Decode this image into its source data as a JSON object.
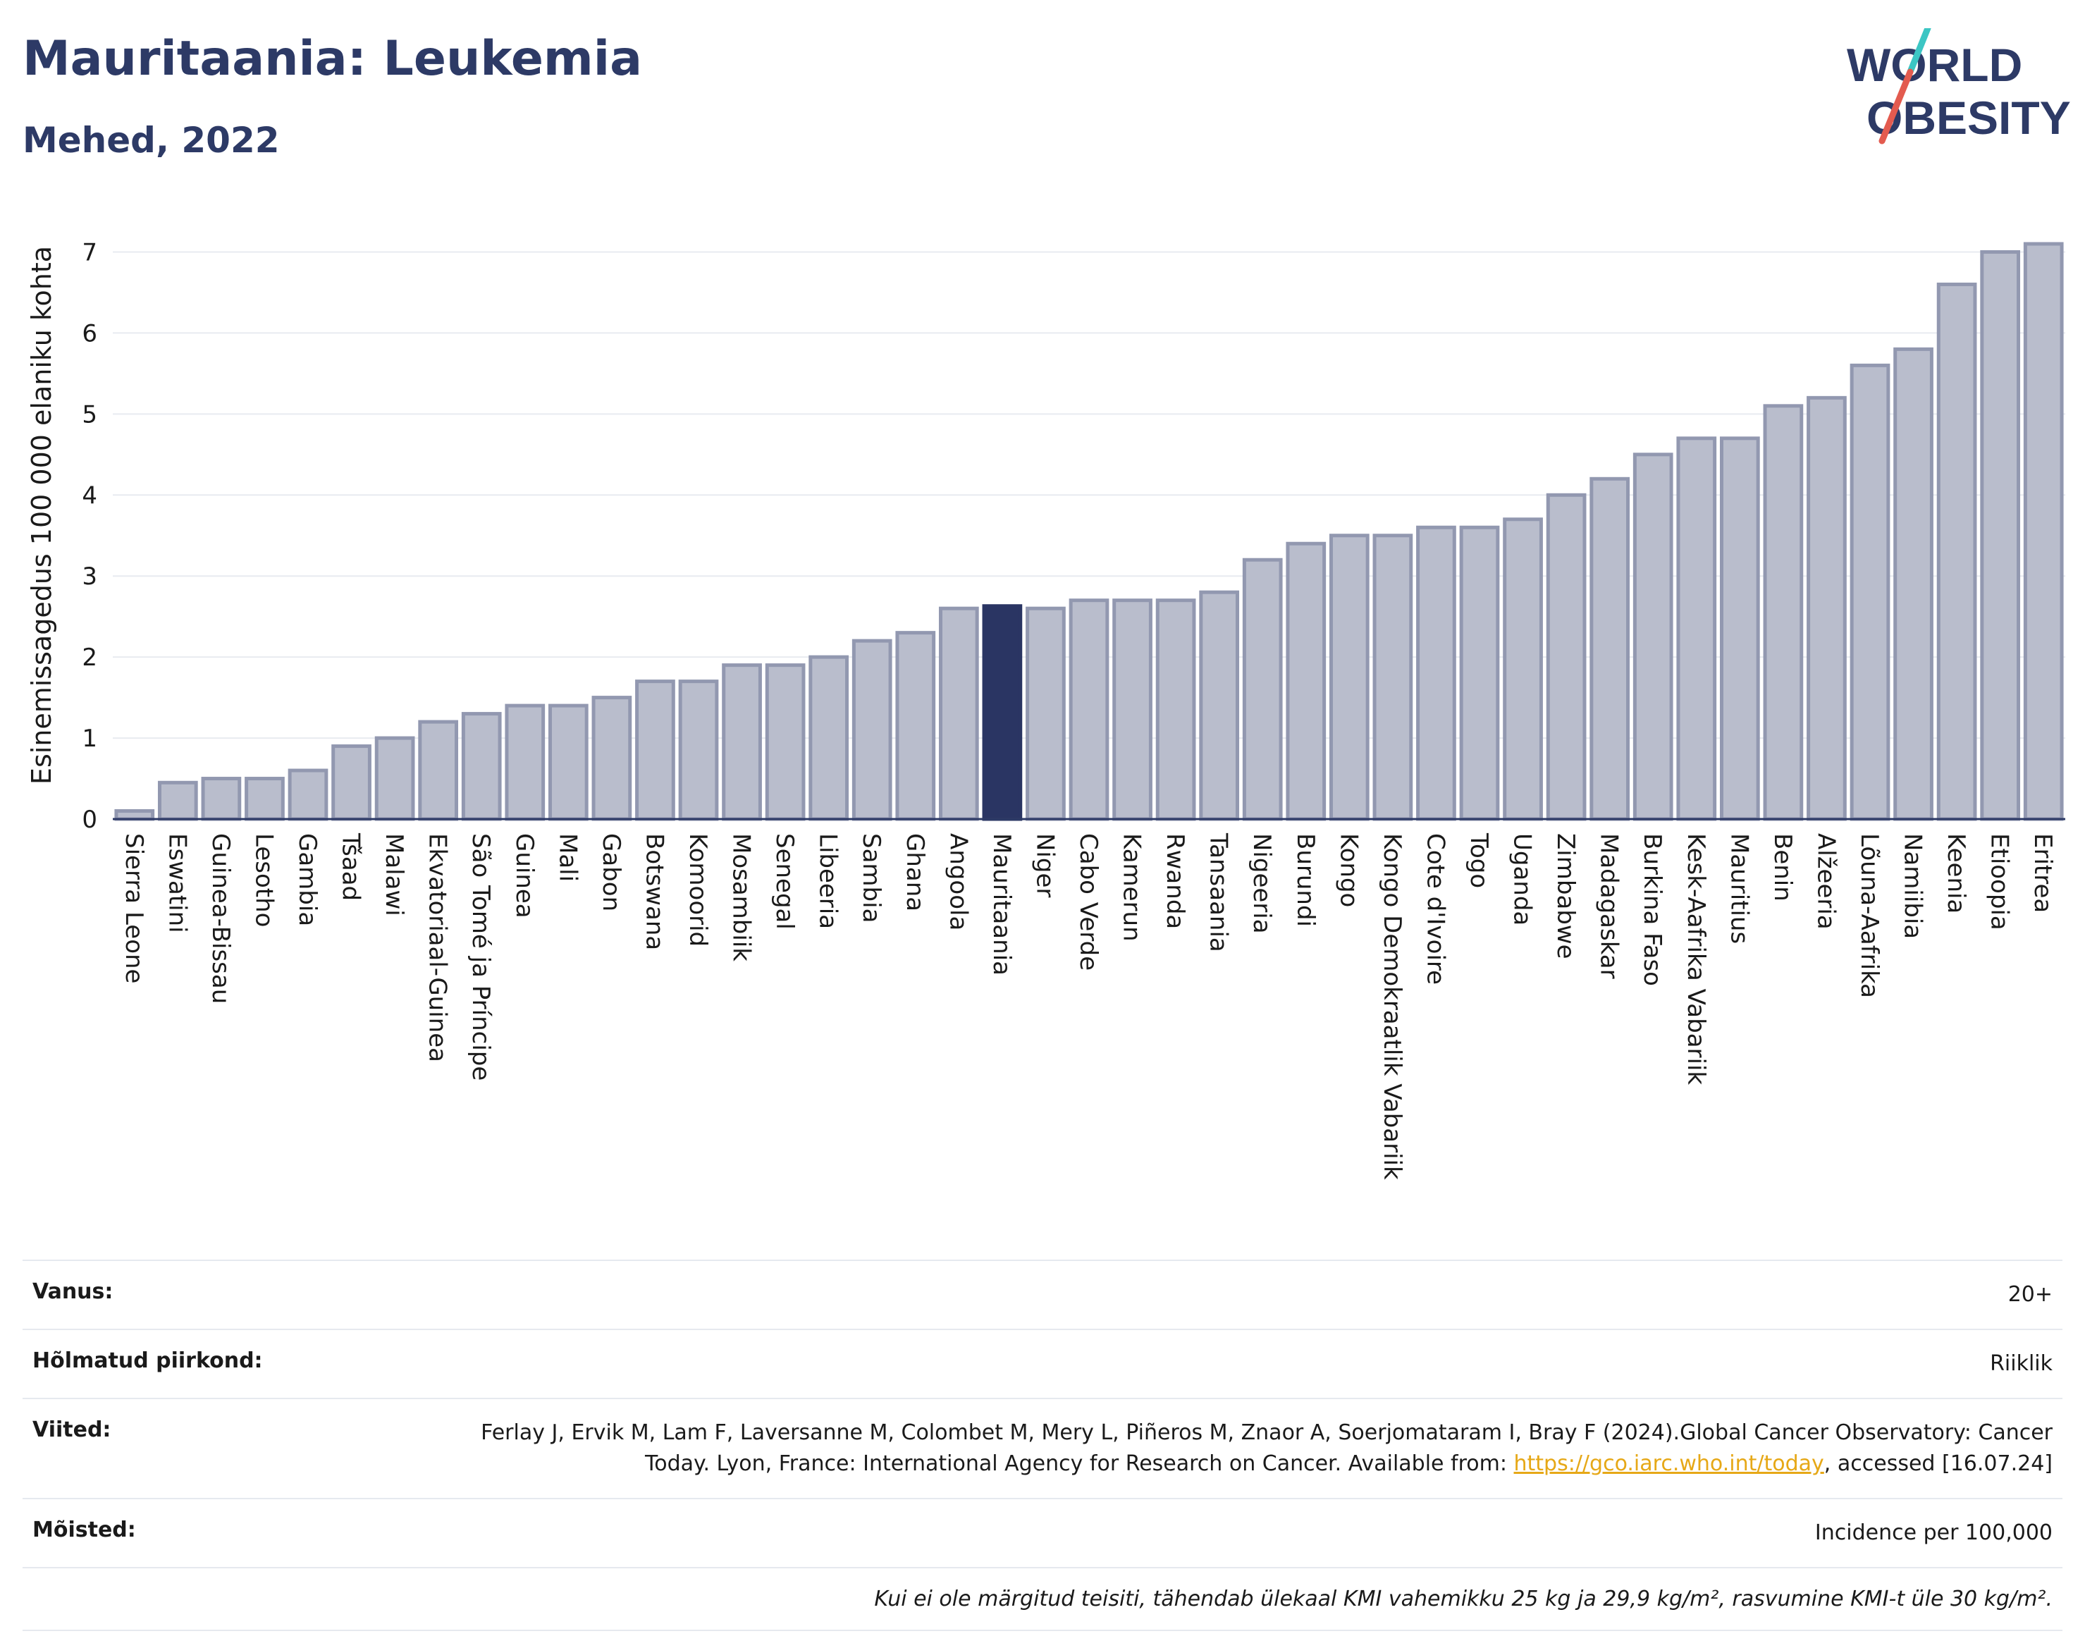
{
  "header": {
    "title": "Mauritaania: Leukemia",
    "subtitle": "Mehed, 2022",
    "logo_line1": "WORLD",
    "logo_line2": "OBESITY"
  },
  "colors": {
    "bar": "#b9bdcc",
    "bar_stroke": "#9298b0",
    "highlight": "#2a3563",
    "text": "#2d3a66",
    "logo_teal": "#3cc6c4",
    "logo_red": "#e35b4f"
  },
  "chart_data": {
    "type": "bar",
    "ylabel": "Esinemissagedus 100 000 elaniku kohta",
    "ylim": [
      0,
      7.5
    ],
    "yticks": [
      0,
      1,
      2,
      3,
      4,
      5,
      6,
      7
    ],
    "grid": true,
    "highlight": "Mauritaania",
    "categories": [
      "Sierra Leone",
      "Eswatini",
      "Guinea-Bissau",
      "Lesotho",
      "Gambia",
      "Tšaad",
      "Malawi",
      "Ekvatoriaal-Guinea",
      "São Tomé ja Príncipe",
      "Guinea",
      "Mali",
      "Gabon",
      "Botswana",
      "Komoorid",
      "Mosambiik",
      "Senegal",
      "Libeeria",
      "Sambia",
      "Ghana",
      "Angoola",
      "Mauritaania",
      "Niger",
      "Cabo Verde",
      "Kamerun",
      "Rwanda",
      "Tansaania",
      "Nigeeria",
      "Burundi",
      "Kongo",
      "Kongo Demokraatlik Vabariik",
      "Cote d'Ivoire",
      "Togo",
      "Uganda",
      "Zimbabwe",
      "Madagaskar",
      "Burkina Faso",
      "Kesk-Aafrika Vabariik",
      "Mauritius",
      "Benin",
      "Alžeeria",
      "Lõuna-Aafrika",
      "Namiibia",
      "Keenia",
      "Etioopia",
      "Eritrea"
    ],
    "values": [
      0.1,
      0.45,
      0.5,
      0.5,
      0.6,
      0.9,
      1.0,
      1.2,
      1.3,
      1.4,
      1.4,
      1.5,
      1.7,
      1.7,
      1.9,
      1.9,
      2.0,
      2.2,
      2.3,
      2.6,
      2.63,
      2.6,
      2.7,
      2.7,
      2.7,
      2.8,
      3.2,
      3.4,
      3.5,
      3.5,
      3.6,
      3.6,
      3.7,
      4.0,
      4.2,
      4.5,
      4.7,
      4.7,
      5.1,
      5.2,
      5.6,
      5.8,
      6.6,
      7.0,
      7.1
    ]
  },
  "info": {
    "age_label": "Vanus:",
    "age_value": "20+",
    "region_label": "Hõlmatud piirkond:",
    "region_value": "Riiklik",
    "refs_label": "Viited:",
    "refs_text_1": "Ferlay J, Ervik M, Lam F, Laversanne M, Colombet M, Mery L, Piñeros M, Znaor A, Soerjomataram I, Bray F (2024).Global Cancer Observatory: Cancer Today. Lyon, France: International Agency for Research on Cancer. Available from: ",
    "refs_link": "https://gco.iarc.who.int/today",
    "refs_text_2": ", accessed [16.07.24]",
    "defs_label": "Mõisted:",
    "defs_value": "Incidence per 100,000",
    "note": "Kui ei ole märgitud teisiti, tähendab ülekaal KMI vahemikku 25 kg ja 29,9 kg/m², rasvumine KMI-t üle 30 kg/m²."
  }
}
